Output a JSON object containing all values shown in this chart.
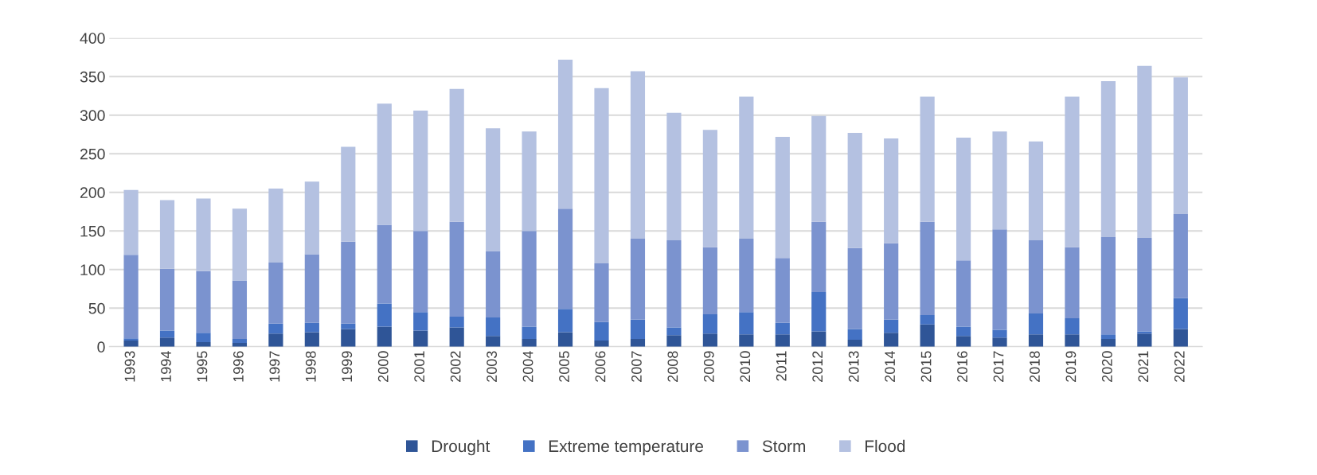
{
  "chart_data": {
    "type": "bar",
    "stacked": true,
    "categories": [
      "1993",
      "1994",
      "1995",
      "1996",
      "1997",
      "1998",
      "1999",
      "2000",
      "2001",
      "2002",
      "2003",
      "2004",
      "2005",
      "2006",
      "2007",
      "2008",
      "2009",
      "2010",
      "2011",
      "2012",
      "2013",
      "2014",
      "2015",
      "2016",
      "2017",
      "2018",
      "2019",
      "2020",
      "2021",
      "2022"
    ],
    "series": [
      {
        "name": "Drought",
        "color": "#2f5597",
        "values": [
          8,
          12,
          6,
          5,
          17,
          19,
          23,
          26,
          21,
          25,
          14,
          10,
          19,
          8,
          10,
          15,
          17,
          16,
          16,
          20,
          9,
          18,
          29,
          14,
          12,
          16,
          16,
          10,
          17,
          23
        ]
      },
      {
        "name": "Extreme temperature",
        "color": "#4472c4",
        "values": [
          3,
          9,
          12,
          5,
          13,
          12,
          7,
          30,
          24,
          14,
          24,
          16,
          30,
          24,
          25,
          10,
          25,
          29,
          15,
          51,
          14,
          17,
          12,
          12,
          10,
          27,
          21,
          6,
          3,
          40
        ]
      },
      {
        "name": "Storm",
        "color": "#7b93cf",
        "values": [
          108,
          80,
          80,
          76,
          79,
          89,
          106,
          102,
          105,
          123,
          86,
          124,
          130,
          76,
          105,
          113,
          87,
          95,
          84,
          91,
          105,
          99,
          121,
          86,
          130,
          95,
          92,
          126,
          121,
          109
        ]
      },
      {
        "name": "Flood",
        "color": "#b4c1e1",
        "values": [
          84,
          89,
          94,
          93,
          96,
          94,
          123,
          157,
          156,
          172,
          159,
          129,
          193,
          227,
          217,
          165,
          152,
          184,
          157,
          137,
          149,
          136,
          162,
          159,
          127,
          128,
          195,
          202,
          223,
          177
        ]
      }
    ],
    "ylim": [
      0,
      400
    ],
    "yticks": [
      0,
      50,
      100,
      150,
      200,
      250,
      300,
      350,
      400
    ],
    "grid": "y",
    "legend": "bottom"
  }
}
